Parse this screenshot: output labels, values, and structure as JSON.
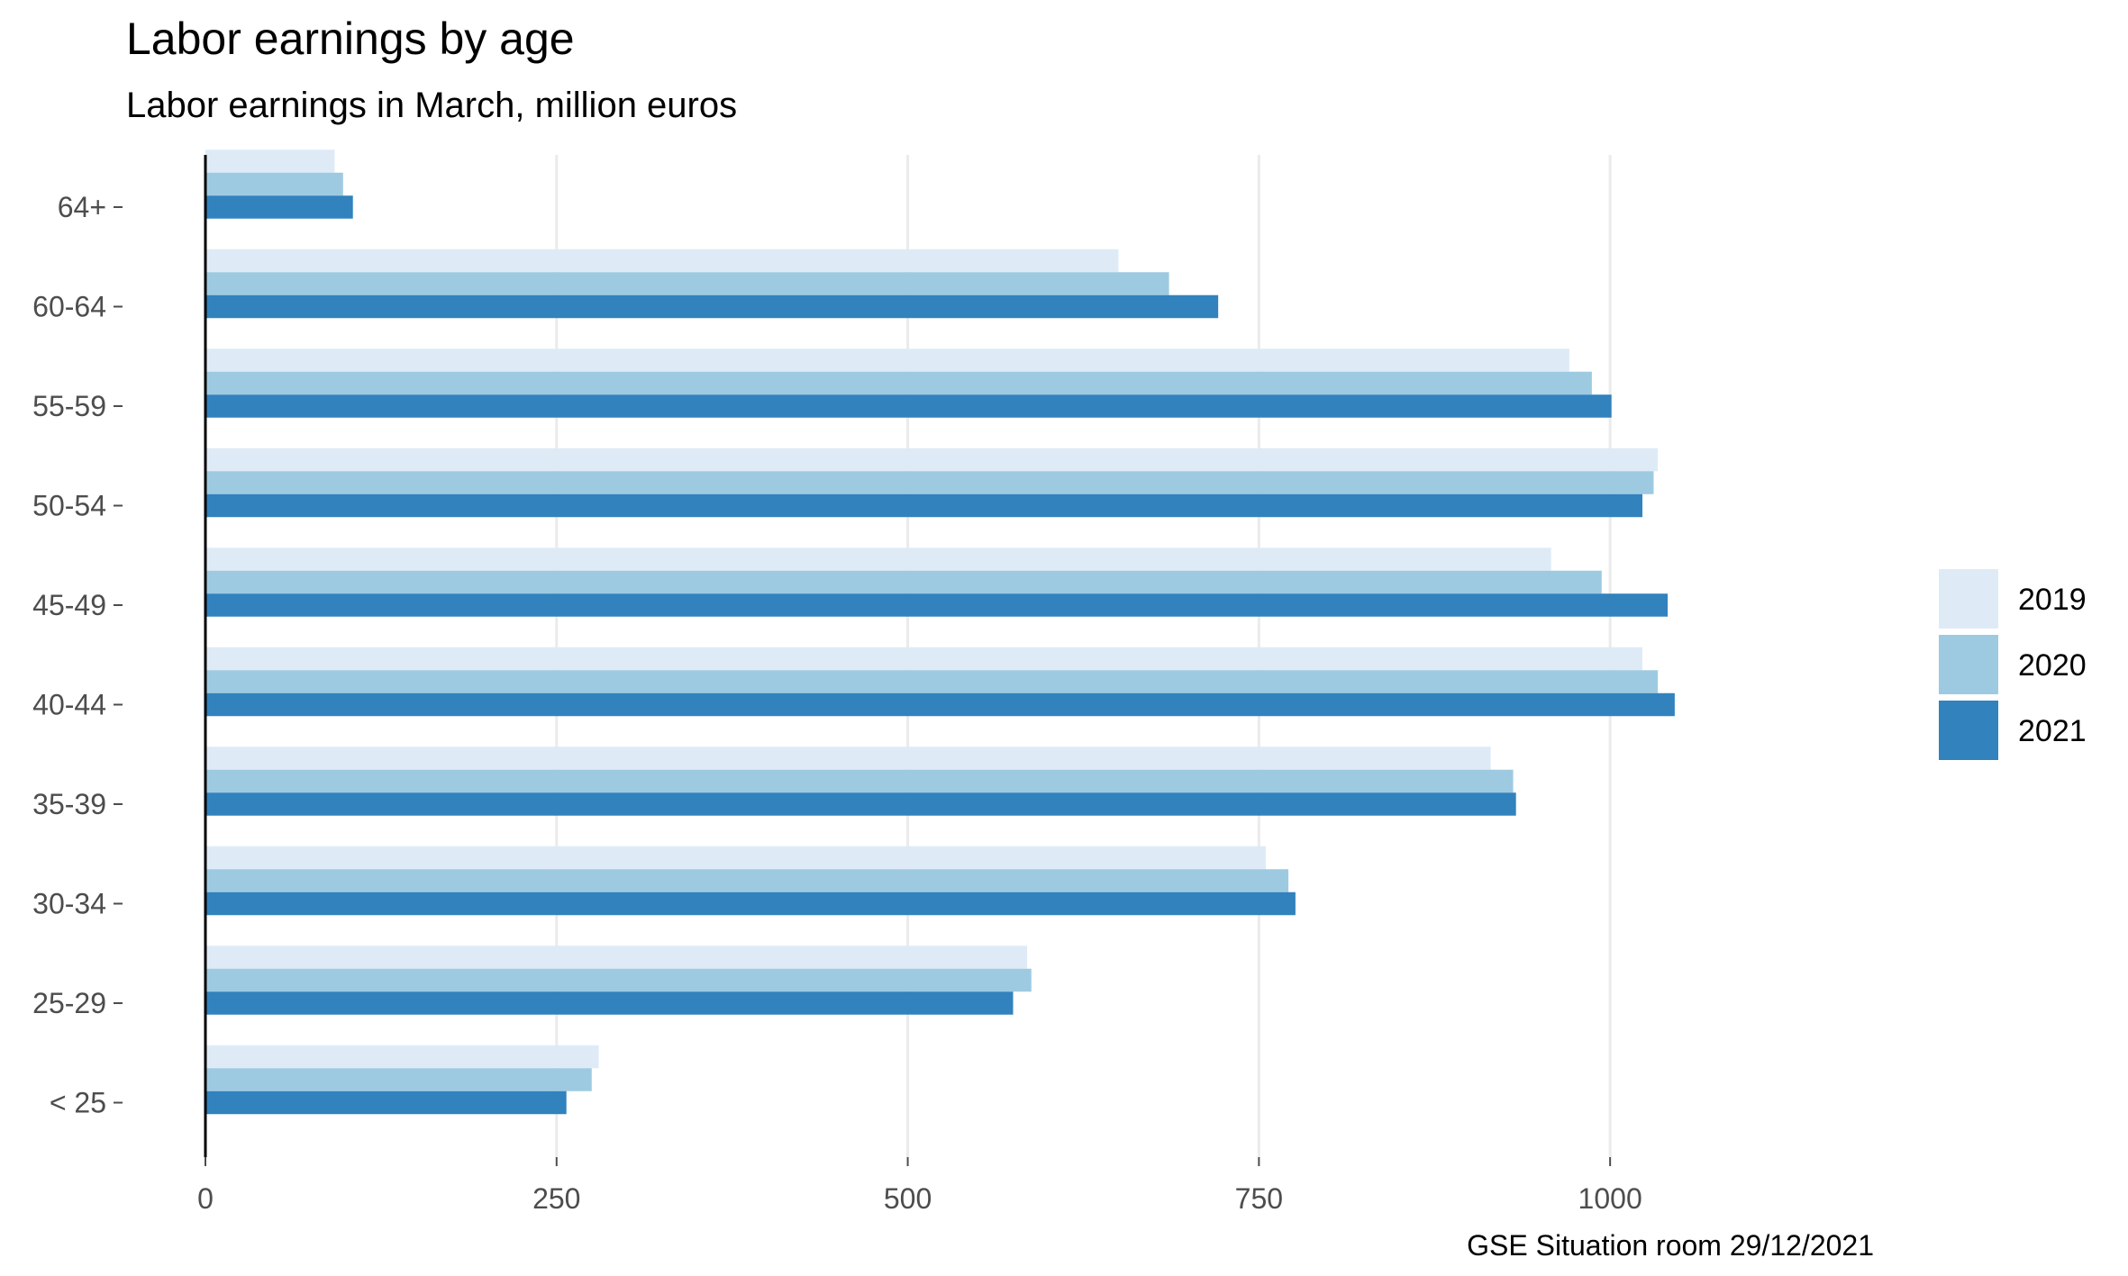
{
  "chart_data": {
    "type": "bar",
    "orientation": "horizontal",
    "title": "Labor earnings by age",
    "subtitle": "Labor earnings in March, million euros",
    "caption": "GSE Situation room 29/12/2021",
    "xlabel": "",
    "ylabel": "",
    "xlim": [
      0,
      1175
    ],
    "x_ticks": [
      0,
      250,
      500,
      750,
      1000
    ],
    "grid": "vertical major gridlines",
    "legend_position": "right",
    "categories": [
      "64+",
      "60-64",
      "55-59",
      "50-54",
      "45-49",
      "40-44",
      "35-39",
      "30-34",
      "25-29",
      "< 25"
    ],
    "series": [
      {
        "name": "2019",
        "color": "#deebf7",
        "values": [
          92,
          650,
          971,
          1034,
          958,
          1023,
          915,
          755,
          585,
          280
        ]
      },
      {
        "name": "2020",
        "color": "#9ecae1",
        "values": [
          98,
          686,
          987,
          1031,
          994,
          1034,
          931,
          771,
          588,
          275
        ]
      },
      {
        "name": "2021",
        "color": "#3182bd",
        "values": [
          105,
          721,
          1001,
          1023,
          1041,
          1046,
          933,
          776,
          575,
          257
        ]
      }
    ]
  }
}
